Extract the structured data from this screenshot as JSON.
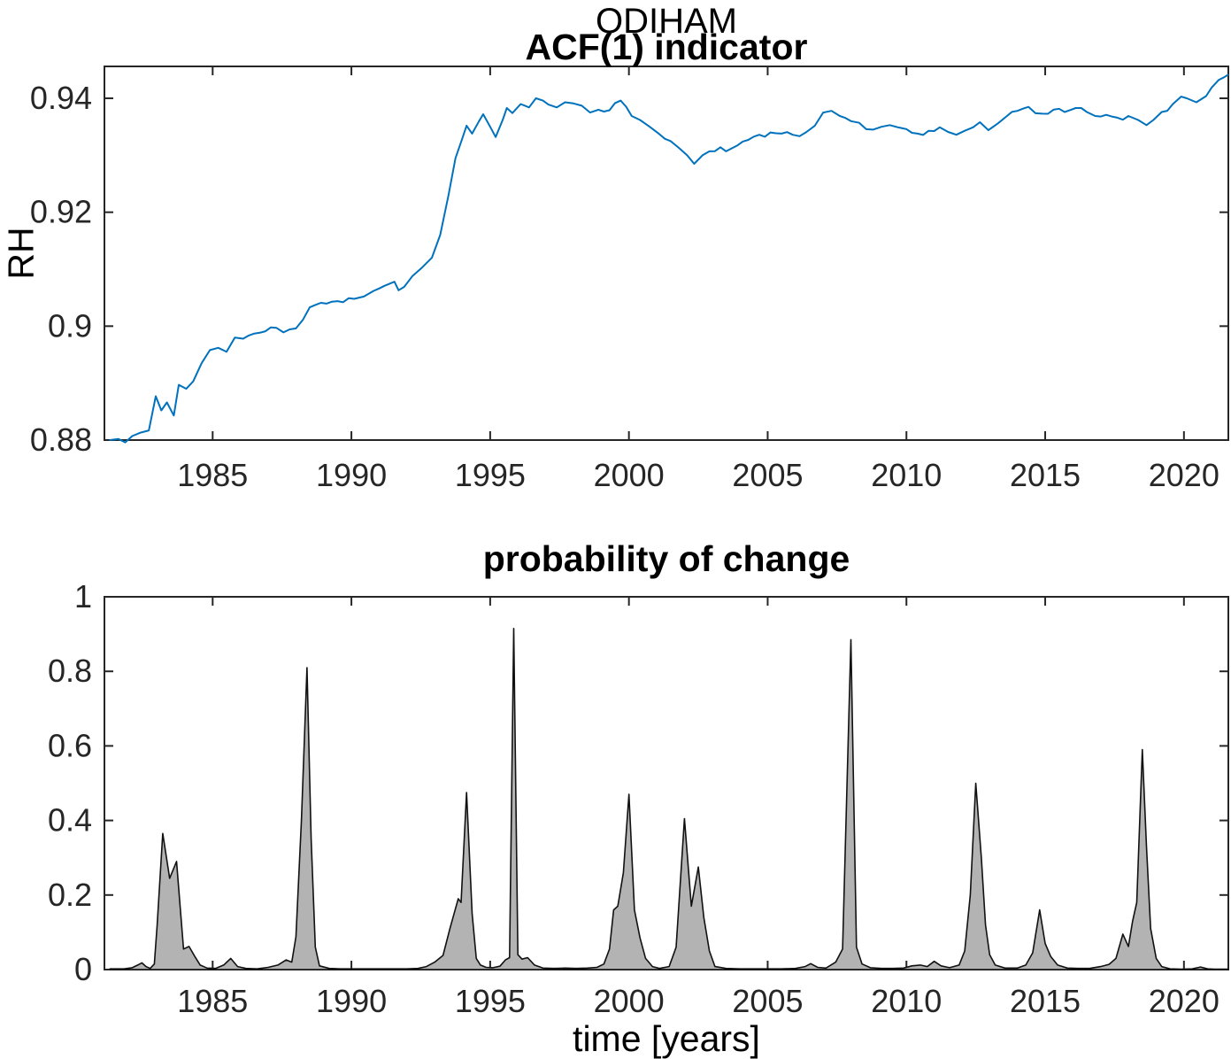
{
  "figure": {
    "suptitle": "ODIHAM",
    "background": "#ffffff",
    "axis_color": "#262626",
    "text_color": "#000000"
  },
  "chart_data": [
    {
      "type": "line",
      "title": "ACF(1) indicator",
      "suptitle": "ODIHAM",
      "xlabel": "",
      "ylabel": "RH",
      "xlim": [
        1981.1,
        2021.6
      ],
      "ylim": [
        0.88,
        0.9456
      ],
      "xticks": [
        1985,
        1990,
        1995,
        2000,
        2005,
        2010,
        2015,
        2020
      ],
      "xtick_labels": [
        "1985",
        "1990",
        "1995",
        "2000",
        "2005",
        "2010",
        "2015",
        "2020"
      ],
      "yticks": [
        0.88,
        0.9,
        0.92,
        0.94
      ],
      "ytick_labels": [
        "0.88",
        "0.9",
        "0.92",
        "0.94"
      ],
      "grid": false,
      "legend": null,
      "line_color": "#0072BD",
      "line_width": 2,
      "noise_amplitude": 0.00055,
      "points": [
        [
          1981.3,
          0.88
        ],
        [
          1981.6,
          0.8802
        ],
        [
          1981.85,
          0.8796
        ],
        [
          1982.1,
          0.8807
        ],
        [
          1982.4,
          0.8813
        ],
        [
          1982.7,
          0.8817
        ],
        [
          1982.95,
          0.8877
        ],
        [
          1983.15,
          0.8852
        ],
        [
          1983.35,
          0.8866
        ],
        [
          1983.6,
          0.8843
        ],
        [
          1983.78,
          0.8897
        ],
        [
          1984.05,
          0.889
        ],
        [
          1984.3,
          0.8903
        ],
        [
          1984.6,
          0.8935
        ],
        [
          1984.9,
          0.8958
        ],
        [
          1985.2,
          0.8962
        ],
        [
          1985.5,
          0.8955
        ],
        [
          1985.8,
          0.898
        ],
        [
          1986.1,
          0.8978
        ],
        [
          1986.5,
          0.8987
        ],
        [
          1986.9,
          0.8991
        ],
        [
          1987.3,
          0.8997
        ],
        [
          1987.55,
          0.8989
        ],
        [
          1988.0,
          0.8996
        ],
        [
          1988.5,
          0.9033
        ],
        [
          1988.9,
          0.9041
        ],
        [
          1989.3,
          0.9043
        ],
        [
          1989.7,
          0.9042
        ],
        [
          1990.1,
          0.9048
        ],
        [
          1990.45,
          0.9052
        ],
        [
          1990.8,
          0.9062
        ],
        [
          1991.2,
          0.9071
        ],
        [
          1991.55,
          0.9078
        ],
        [
          1991.7,
          0.9063
        ],
        [
          1991.9,
          0.9069
        ],
        [
          1992.2,
          0.9088
        ],
        [
          1992.55,
          0.9103
        ],
        [
          1992.9,
          0.912
        ],
        [
          1993.2,
          0.916
        ],
        [
          1993.5,
          0.923
        ],
        [
          1993.75,
          0.9295
        ],
        [
          1994.0,
          0.933
        ],
        [
          1994.15,
          0.9352
        ],
        [
          1994.35,
          0.9338
        ],
        [
          1994.6,
          0.936
        ],
        [
          1994.75,
          0.9372
        ],
        [
          1995.0,
          0.935
        ],
        [
          1995.2,
          0.9332
        ],
        [
          1995.45,
          0.9362
        ],
        [
          1995.6,
          0.9383
        ],
        [
          1995.8,
          0.9374
        ],
        [
          1996.1,
          0.939
        ],
        [
          1996.4,
          0.9384
        ],
        [
          1996.65,
          0.94
        ],
        [
          1996.9,
          0.9396
        ],
        [
          1997.1,
          0.9389
        ],
        [
          1997.4,
          0.9384
        ],
        [
          1997.7,
          0.9393
        ],
        [
          1998.0,
          0.9391
        ],
        [
          1998.3,
          0.9387
        ],
        [
          1998.6,
          0.9375
        ],
        [
          1998.9,
          0.938
        ],
        [
          1999.3,
          0.9379
        ],
        [
          1999.7,
          0.9396
        ],
        [
          2000.1,
          0.9369
        ],
        [
          2000.4,
          0.9362
        ],
        [
          2000.75,
          0.935
        ],
        [
          2001.1,
          0.9337
        ],
        [
          2001.5,
          0.9325
        ],
        [
          2001.8,
          0.9313
        ],
        [
          2002.1,
          0.93
        ],
        [
          2002.35,
          0.9285
        ],
        [
          2002.65,
          0.93
        ],
        [
          2002.9,
          0.9307
        ],
        [
          2003.3,
          0.9314
        ],
        [
          2003.5,
          0.9307
        ],
        [
          2003.9,
          0.9317
        ],
        [
          2004.3,
          0.9327
        ],
        [
          2004.7,
          0.9336
        ],
        [
          2005.1,
          0.934
        ],
        [
          2005.5,
          0.9338
        ],
        [
          2005.9,
          0.9336
        ],
        [
          2006.4,
          0.9341
        ],
        [
          2006.7,
          0.9352
        ],
        [
          2007.0,
          0.9375
        ],
        [
          2007.3,
          0.9378
        ],
        [
          2007.6,
          0.9369
        ],
        [
          2008.0,
          0.936
        ],
        [
          2008.3,
          0.9357
        ],
        [
          2008.8,
          0.9345
        ],
        [
          2009.1,
          0.935
        ],
        [
          2009.4,
          0.9353
        ],
        [
          2009.7,
          0.9349
        ],
        [
          2010.0,
          0.9346
        ],
        [
          2010.4,
          0.9338
        ],
        [
          2010.8,
          0.9343
        ],
        [
          2011.2,
          0.9349
        ],
        [
          2011.5,
          0.9341
        ],
        [
          2011.8,
          0.9336
        ],
        [
          2012.1,
          0.9343
        ],
        [
          2012.4,
          0.9349
        ],
        [
          2012.65,
          0.9358
        ],
        [
          2012.95,
          0.9344
        ],
        [
          2013.3,
          0.9356
        ],
        [
          2013.6,
          0.9368
        ],
        [
          2014.0,
          0.9378
        ],
        [
          2014.4,
          0.9385
        ],
        [
          2014.9,
          0.9373
        ],
        [
          2015.3,
          0.938
        ],
        [
          2015.7,
          0.9376
        ],
        [
          2016.1,
          0.9383
        ],
        [
          2016.5,
          0.9376
        ],
        [
          2016.8,
          0.9369
        ],
        [
          2017.2,
          0.9371
        ],
        [
          2017.6,
          0.9366
        ],
        [
          2018.0,
          0.9369
        ],
        [
          2018.35,
          0.9362
        ],
        [
          2018.65,
          0.9353
        ],
        [
          2018.9,
          0.9362
        ],
        [
          2019.2,
          0.9376
        ],
        [
          2019.6,
          0.939
        ],
        [
          2019.9,
          0.9403
        ],
        [
          2020.1,
          0.94
        ],
        [
          2020.45,
          0.9393
        ],
        [
          2020.8,
          0.9404
        ],
        [
          2021.0,
          0.9419
        ],
        [
          2021.25,
          0.9432
        ],
        [
          2021.45,
          0.9437
        ],
        [
          2021.58,
          0.9441
        ]
      ]
    },
    {
      "type": "area",
      "title": "probability of change",
      "xlabel": "time [years]",
      "ylabel": "",
      "xlim": [
        1981.1,
        2021.6
      ],
      "ylim": [
        0,
        1
      ],
      "xticks": [
        1985,
        1990,
        1995,
        2000,
        2005,
        2010,
        2015,
        2020
      ],
      "xtick_labels": [
        "1985",
        "1990",
        "1995",
        "2000",
        "2005",
        "2010",
        "2015",
        "2020"
      ],
      "yticks": [
        0,
        0.2,
        0.4,
        0.6,
        0.8,
        1
      ],
      "ytick_labels": [
        "0",
        "0.2",
        "0.4",
        "0.6",
        "0.8",
        "1"
      ],
      "grid": false,
      "legend": null,
      "fill_color": "#b3b3b3",
      "edge_color": "#111111",
      "line_width": 1.6,
      "noise_amplitude": 0,
      "points": [
        [
          1981.3,
          0.002
        ],
        [
          1981.8,
          0.002
        ],
        [
          1982.1,
          0.005
        ],
        [
          1982.3,
          0.012
        ],
        [
          1982.45,
          0.018
        ],
        [
          1982.6,
          0.008
        ],
        [
          1982.75,
          0.003
        ],
        [
          1982.9,
          0.015
        ],
        [
          1983.0,
          0.12
        ],
        [
          1983.2,
          0.365
        ],
        [
          1983.45,
          0.245
        ],
        [
          1983.7,
          0.29
        ],
        [
          1983.85,
          0.15
        ],
        [
          1983.95,
          0.055
        ],
        [
          1984.15,
          0.062
        ],
        [
          1984.35,
          0.036
        ],
        [
          1984.55,
          0.012
        ],
        [
          1984.8,
          0.004
        ],
        [
          1985.1,
          0.003
        ],
        [
          1985.4,
          0.012
        ],
        [
          1985.65,
          0.03
        ],
        [
          1985.9,
          0.008
        ],
        [
          1986.2,
          0.003
        ],
        [
          1986.6,
          0.002
        ],
        [
          1987.0,
          0.006
        ],
        [
          1987.35,
          0.012
        ],
        [
          1987.65,
          0.026
        ],
        [
          1987.85,
          0.02
        ],
        [
          1988.0,
          0.088
        ],
        [
          1988.2,
          0.4
        ],
        [
          1988.4,
          0.81
        ],
        [
          1988.55,
          0.35
        ],
        [
          1988.7,
          0.06
        ],
        [
          1988.85,
          0.01
        ],
        [
          1989.2,
          0.003
        ],
        [
          1989.6,
          0.002
        ],
        [
          1990.0,
          0.002
        ],
        [
          1990.5,
          0.002
        ],
        [
          1991.0,
          0.002
        ],
        [
          1991.5,
          0.002
        ],
        [
          1992.0,
          0.002
        ],
        [
          1992.4,
          0.003
        ],
        [
          1992.7,
          0.008
        ],
        [
          1993.0,
          0.02
        ],
        [
          1993.3,
          0.038
        ],
        [
          1993.55,
          0.11
        ],
        [
          1993.7,
          0.15
        ],
        [
          1993.85,
          0.19
        ],
        [
          1993.95,
          0.18
        ],
        [
          1994.15,
          0.475
        ],
        [
          1994.35,
          0.15
        ],
        [
          1994.5,
          0.03
        ],
        [
          1994.65,
          0.012
        ],
        [
          1994.85,
          0.006
        ],
        [
          1995.1,
          0.005
        ],
        [
          1995.35,
          0.009
        ],
        [
          1995.55,
          0.026
        ],
        [
          1995.7,
          0.032
        ],
        [
          1995.85,
          0.915
        ],
        [
          1996.0,
          0.04
        ],
        [
          1996.15,
          0.028
        ],
        [
          1996.35,
          0.032
        ],
        [
          1996.6,
          0.012
        ],
        [
          1996.9,
          0.004
        ],
        [
          1997.3,
          0.003
        ],
        [
          1997.7,
          0.004
        ],
        [
          1998.1,
          0.003
        ],
        [
          1998.5,
          0.004
        ],
        [
          1998.85,
          0.006
        ],
        [
          1999.1,
          0.015
        ],
        [
          1999.3,
          0.055
        ],
        [
          1999.45,
          0.16
        ],
        [
          1999.6,
          0.17
        ],
        [
          1999.8,
          0.26
        ],
        [
          2000.0,
          0.47
        ],
        [
          2000.2,
          0.16
        ],
        [
          2000.4,
          0.085
        ],
        [
          2000.6,
          0.03
        ],
        [
          2000.85,
          0.008
        ],
        [
          2001.1,
          0.003
        ],
        [
          2001.45,
          0.008
        ],
        [
          2001.7,
          0.06
        ],
        [
          2002.0,
          0.405
        ],
        [
          2002.25,
          0.17
        ],
        [
          2002.5,
          0.275
        ],
        [
          2002.7,
          0.14
        ],
        [
          2002.9,
          0.05
        ],
        [
          2003.1,
          0.008
        ],
        [
          2003.5,
          0.003
        ],
        [
          2004.0,
          0.002
        ],
        [
          2004.5,
          0.002
        ],
        [
          2005.0,
          0.002
        ],
        [
          2005.5,
          0.002
        ],
        [
          2006.0,
          0.003
        ],
        [
          2006.35,
          0.008
        ],
        [
          2006.55,
          0.016
        ],
        [
          2006.8,
          0.006
        ],
        [
          2007.1,
          0.004
        ],
        [
          2007.45,
          0.02
        ],
        [
          2007.7,
          0.055
        ],
        [
          2008.0,
          0.885
        ],
        [
          2008.2,
          0.06
        ],
        [
          2008.4,
          0.015
        ],
        [
          2008.7,
          0.005
        ],
        [
          2009.1,
          0.003
        ],
        [
          2009.5,
          0.003
        ],
        [
          2009.9,
          0.004
        ],
        [
          2010.2,
          0.01
        ],
        [
          2010.5,
          0.012
        ],
        [
          2010.75,
          0.008
        ],
        [
          2011.0,
          0.022
        ],
        [
          2011.25,
          0.01
        ],
        [
          2011.55,
          0.005
        ],
        [
          2011.9,
          0.012
        ],
        [
          2012.1,
          0.05
        ],
        [
          2012.3,
          0.2
        ],
        [
          2012.5,
          0.5
        ],
        [
          2012.7,
          0.3
        ],
        [
          2012.85,
          0.12
        ],
        [
          2013.0,
          0.04
        ],
        [
          2013.2,
          0.012
        ],
        [
          2013.55,
          0.004
        ],
        [
          2014.0,
          0.004
        ],
        [
          2014.3,
          0.012
        ],
        [
          2014.55,
          0.045
        ],
        [
          2014.8,
          0.16
        ],
        [
          2015.0,
          0.07
        ],
        [
          2015.2,
          0.035
        ],
        [
          2015.45,
          0.012
        ],
        [
          2015.8,
          0.004
        ],
        [
          2016.2,
          0.003
        ],
        [
          2016.6,
          0.003
        ],
        [
          2017.0,
          0.008
        ],
        [
          2017.3,
          0.014
        ],
        [
          2017.55,
          0.03
        ],
        [
          2017.8,
          0.095
        ],
        [
          2018.0,
          0.062
        ],
        [
          2018.15,
          0.13
        ],
        [
          2018.3,
          0.18
        ],
        [
          2018.5,
          0.59
        ],
        [
          2018.65,
          0.33
        ],
        [
          2018.8,
          0.11
        ],
        [
          2019.0,
          0.03
        ],
        [
          2019.2,
          0.008
        ],
        [
          2019.5,
          0.002
        ],
        [
          2019.9,
          0.001
        ],
        [
          2020.3,
          0.002
        ],
        [
          2020.6,
          0.007
        ],
        [
          2020.85,
          0.002
        ],
        [
          2021.1,
          0.001
        ],
        [
          2021.58,
          0.001
        ]
      ]
    }
  ]
}
